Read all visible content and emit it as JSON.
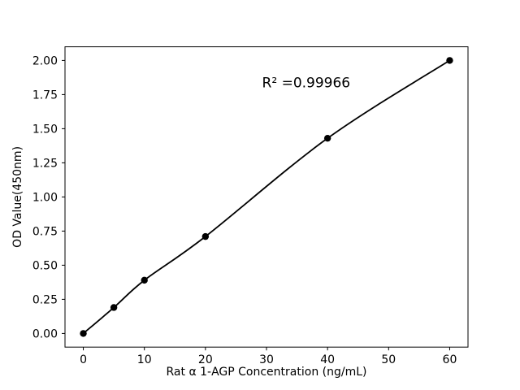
{
  "chart_data": {
    "type": "scatter",
    "title": "",
    "xlabel": "Rat α 1-AGP Concentration (ng/mL)",
    "ylabel": "OD Value(450nm)",
    "x": [
      0,
      5,
      10,
      20,
      40,
      60
    ],
    "y": [
      0.0,
      0.19,
      0.39,
      0.71,
      1.43,
      2.0
    ],
    "fit_line": true,
    "xlim": [
      -3,
      63
    ],
    "ylim": [
      -0.1,
      2.1
    ],
    "xticks": [
      0,
      10,
      20,
      30,
      40,
      50,
      60
    ],
    "yticks": [
      0.0,
      0.25,
      0.5,
      0.75,
      1.0,
      1.25,
      1.5,
      1.75,
      2.0
    ],
    "annotation": {
      "text": "R² =0.99966",
      "x": 36.5,
      "y": 1.84
    },
    "grid": false,
    "legend": null,
    "colors": {
      "marker": "#000000",
      "line": "#000000",
      "axis": "#000000",
      "background": "#ffffff"
    }
  }
}
